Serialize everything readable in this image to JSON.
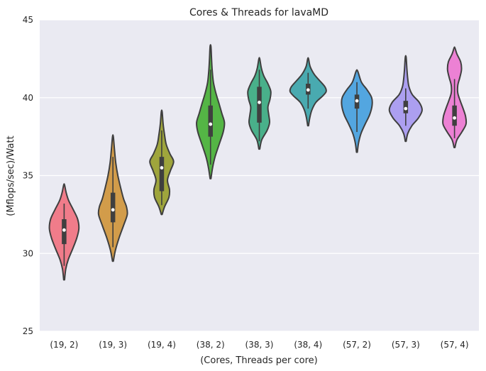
{
  "chart_data": {
    "type": "violin",
    "title": "Cores & Threads for lavaMD",
    "xlabel": "(Cores, Threads per core)",
    "ylabel": "(Mflops/sec)/Watt",
    "ylim": [
      25,
      45
    ],
    "yticks": [
      "25",
      "30",
      "35",
      "40",
      "45"
    ],
    "grid": true,
    "categories": [
      "(19, 2)",
      "(19, 3)",
      "(19, 4)",
      "(38, 2)",
      "(38, 3)",
      "(38, 4)",
      "(57, 2)",
      "(57, 3)",
      "(57, 4)"
    ],
    "colors": [
      "#f07c8a",
      "#d29c4a",
      "#9fa53c",
      "#54b545",
      "#49b08a",
      "#49aab0",
      "#53a6e0",
      "#ac9ff0",
      "#ec81d4"
    ],
    "violins": [
      {
        "min": 28.3,
        "max": 34.4,
        "q1": 30.6,
        "median": 31.5,
        "q3": 32.2,
        "whisker_low": 29.2,
        "whisker_high": 33.2,
        "profile": [
          [
            28.3,
            0.02
          ],
          [
            29.0,
            0.08
          ],
          [
            29.6,
            0.2
          ],
          [
            30.3,
            0.42
          ],
          [
            31.0,
            0.62
          ],
          [
            31.6,
            0.72
          ],
          [
            32.2,
            0.66
          ],
          [
            32.8,
            0.45
          ],
          [
            33.4,
            0.22
          ],
          [
            33.9,
            0.1
          ],
          [
            34.4,
            0.02
          ]
        ]
      },
      {
        "min": 29.5,
        "max": 37.5,
        "q1": 32.0,
        "median": 32.8,
        "q3": 33.9,
        "whisker_low": 30.4,
        "whisker_high": 36.2,
        "profile": [
          [
            29.5,
            0.02
          ],
          [
            30.2,
            0.12
          ],
          [
            31.0,
            0.3
          ],
          [
            31.8,
            0.52
          ],
          [
            32.5,
            0.7
          ],
          [
            33.0,
            0.66
          ],
          [
            33.5,
            0.52
          ],
          [
            34.2,
            0.38
          ],
          [
            35.0,
            0.24
          ],
          [
            35.8,
            0.14
          ],
          [
            36.6,
            0.08
          ],
          [
            37.5,
            0.02
          ]
        ]
      },
      {
        "min": 32.5,
        "max": 39.1,
        "q1": 34.0,
        "median": 35.5,
        "q3": 36.2,
        "whisker_low": 33.1,
        "whisker_high": 37.9,
        "profile": [
          [
            32.5,
            0.02
          ],
          [
            33.0,
            0.14
          ],
          [
            33.6,
            0.35
          ],
          [
            34.1,
            0.38
          ],
          [
            34.7,
            0.28
          ],
          [
            35.3,
            0.42
          ],
          [
            35.9,
            0.58
          ],
          [
            36.4,
            0.4
          ],
          [
            37.0,
            0.22
          ],
          [
            37.6,
            0.14
          ],
          [
            38.3,
            0.07
          ],
          [
            39.1,
            0.02
          ]
        ]
      },
      {
        "min": 34.8,
        "max": 43.3,
        "q1": 37.5,
        "median": 38.3,
        "q3": 39.5,
        "whisker_low": 35.7,
        "whisker_high": 41.8,
        "profile": [
          [
            34.8,
            0.02
          ],
          [
            35.5,
            0.1
          ],
          [
            36.2,
            0.22
          ],
          [
            37.0,
            0.42
          ],
          [
            37.8,
            0.62
          ],
          [
            38.4,
            0.68
          ],
          [
            39.0,
            0.55
          ],
          [
            39.6,
            0.42
          ],
          [
            40.3,
            0.26
          ],
          [
            41.0,
            0.14
          ],
          [
            41.8,
            0.08
          ],
          [
            42.5,
            0.05
          ],
          [
            43.3,
            0.02
          ]
        ]
      },
      {
        "min": 36.7,
        "max": 42.5,
        "q1": 38.4,
        "median": 39.7,
        "q3": 40.7,
        "whisker_low": 37.2,
        "whisker_high": 41.8,
        "profile": [
          [
            36.7,
            0.02
          ],
          [
            37.3,
            0.12
          ],
          [
            37.9,
            0.38
          ],
          [
            38.4,
            0.5
          ],
          [
            38.9,
            0.46
          ],
          [
            39.4,
            0.42
          ],
          [
            39.9,
            0.52
          ],
          [
            40.4,
            0.56
          ],
          [
            40.9,
            0.42
          ],
          [
            41.4,
            0.22
          ],
          [
            41.9,
            0.1
          ],
          [
            42.5,
            0.02
          ]
        ]
      },
      {
        "min": 38.2,
        "max": 42.5,
        "q1": 40.2,
        "median": 40.5,
        "q3": 40.9,
        "whisker_low": 39.3,
        "whisker_high": 41.6,
        "profile": [
          [
            38.2,
            0.02
          ],
          [
            38.7,
            0.08
          ],
          [
            39.2,
            0.18
          ],
          [
            39.7,
            0.38
          ],
          [
            40.1,
            0.7
          ],
          [
            40.4,
            0.88
          ],
          [
            40.7,
            0.82
          ],
          [
            41.1,
            0.56
          ],
          [
            41.5,
            0.3
          ],
          [
            42.0,
            0.1
          ],
          [
            42.5,
            0.02
          ]
        ]
      },
      {
        "min": 36.5,
        "max": 41.7,
        "q1": 39.3,
        "median": 39.8,
        "q3": 40.2,
        "whisker_low": 37.8,
        "whisker_high": 41.0,
        "profile": [
          [
            36.5,
            0.02
          ],
          [
            37.1,
            0.08
          ],
          [
            37.7,
            0.2
          ],
          [
            38.3,
            0.4
          ],
          [
            38.9,
            0.62
          ],
          [
            39.5,
            0.74
          ],
          [
            40.0,
            0.72
          ],
          [
            40.5,
            0.5
          ],
          [
            41.0,
            0.22
          ],
          [
            41.7,
            0.04
          ]
        ]
      },
      {
        "min": 37.2,
        "max": 42.6,
        "q1": 39.0,
        "median": 39.3,
        "q3": 39.8,
        "whisker_low": 38.2,
        "whisker_high": 40.6,
        "profile": [
          [
            37.2,
            0.02
          ],
          [
            37.7,
            0.1
          ],
          [
            38.2,
            0.3
          ],
          [
            38.7,
            0.62
          ],
          [
            39.2,
            0.8
          ],
          [
            39.7,
            0.66
          ],
          [
            40.2,
            0.32
          ],
          [
            40.7,
            0.16
          ],
          [
            41.2,
            0.1
          ],
          [
            41.8,
            0.06
          ],
          [
            42.6,
            0.02
          ]
        ]
      },
      {
        "min": 36.8,
        "max": 43.2,
        "q1": 38.2,
        "median": 38.7,
        "q3": 39.5,
        "whisker_low": 37.4,
        "whisker_high": 41.2,
        "profile": [
          [
            36.8,
            0.02
          ],
          [
            37.3,
            0.12
          ],
          [
            37.8,
            0.36
          ],
          [
            38.3,
            0.56
          ],
          [
            38.8,
            0.54
          ],
          [
            39.3,
            0.42
          ],
          [
            39.8,
            0.28
          ],
          [
            40.3,
            0.16
          ],
          [
            40.8,
            0.16
          ],
          [
            41.3,
            0.26
          ],
          [
            41.8,
            0.34
          ],
          [
            42.3,
            0.3
          ],
          [
            42.8,
            0.12
          ],
          [
            43.2,
            0.02
          ]
        ]
      }
    ]
  }
}
